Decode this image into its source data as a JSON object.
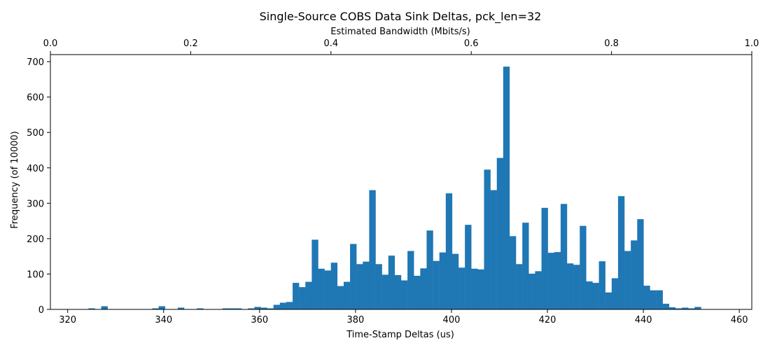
{
  "chart_data": {
    "type": "bar",
    "title": "Single-Source COBS Data Sink Deltas, pck_len=32",
    "xlabel": "Time-Stamp Deltas (us)",
    "ylabel": "Frequency (of 10000)",
    "top_xlabel": "Estimated Bandwidth (Mbits/s)",
    "xlim": [
      316.4,
      462.6
    ],
    "ylim": [
      0,
      720
    ],
    "top_xlim": [
      0.0,
      1.0
    ],
    "x_ticks": [
      320,
      340,
      360,
      380,
      400,
      420,
      440,
      460
    ],
    "x_tick_labels": [
      "320",
      "340",
      "360",
      "380",
      "400",
      "420",
      "440",
      "460"
    ],
    "y_ticks": [
      0,
      100,
      200,
      300,
      400,
      500,
      600,
      700
    ],
    "y_tick_labels": [
      "0",
      "100",
      "200",
      "300",
      "400",
      "500",
      "600",
      "700"
    ],
    "top_ticks": [
      0.0,
      0.2,
      0.4,
      0.6,
      0.8,
      1.0
    ],
    "top_tick_labels": [
      "0.0",
      "0.2",
      "0.4",
      "0.6",
      "0.8",
      "1.0"
    ],
    "bar_color": "#1f77b4",
    "bin_edges_start": 323,
    "bin_width": 1.33,
    "counts": [
      1,
      3,
      1,
      9,
      0,
      0,
      0,
      0,
      1,
      1,
      1,
      3,
      9,
      1,
      1,
      5,
      1,
      0,
      3,
      1,
      1,
      1,
      3,
      3,
      3,
      1,
      3,
      7,
      5,
      3,
      13,
      19,
      21,
      75,
      63,
      78,
      197,
      115,
      110,
      132,
      66,
      78,
      185,
      128,
      135,
      337,
      128,
      98,
      152,
      97,
      82,
      165,
      95,
      116,
      223,
      137,
      161,
      328,
      157,
      118,
      239,
      115,
      113,
      395,
      337,
      428,
      686,
      207,
      128,
      245,
      101,
      108,
      287,
      160,
      162,
      298,
      130,
      126,
      236,
      79,
      75,
      136,
      48,
      88,
      320,
      165,
      195,
      255,
      67,
      54,
      54,
      16,
      6,
      3,
      5,
      3,
      7,
      0,
      1,
      1
    ]
  }
}
